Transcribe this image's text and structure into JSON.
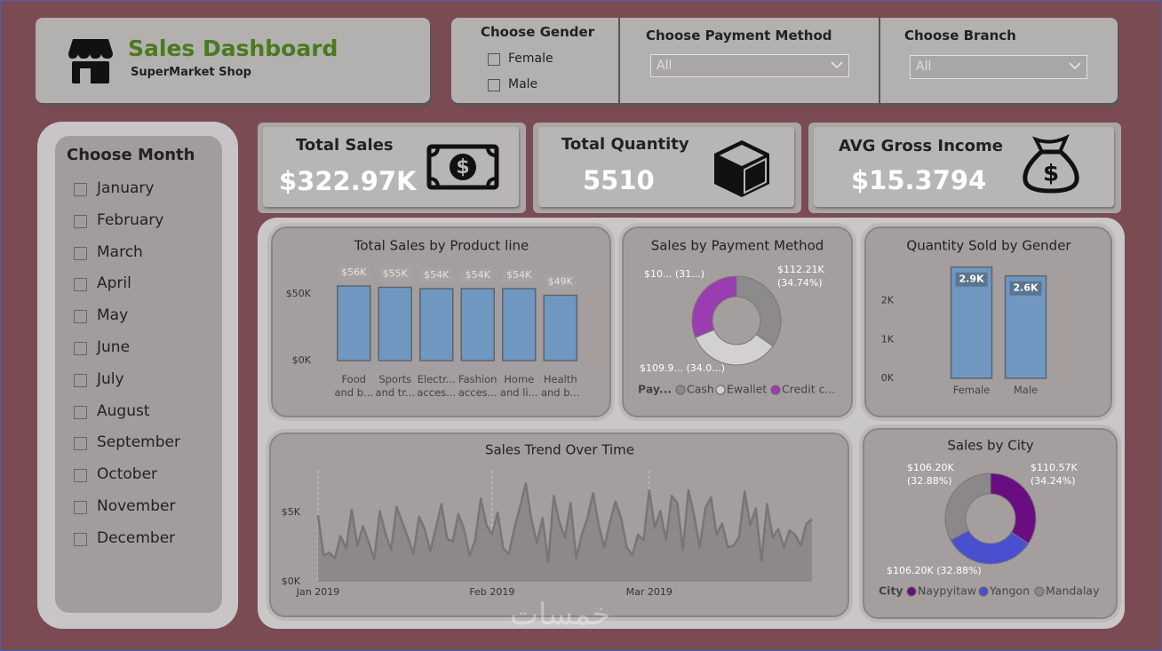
{
  "header": {
    "title": "Sales Dashboard",
    "subtitle": "SuperMarket Shop"
  },
  "filters": {
    "gender": {
      "title": "Choose Gender",
      "options": [
        "Female",
        "Male"
      ]
    },
    "payment": {
      "title": "Choose Payment Method",
      "selected": "All"
    },
    "branch": {
      "title": "Choose Branch",
      "selected": "All"
    },
    "month": {
      "title": "Choose Month",
      "options": [
        "January",
        "February",
        "March",
        "April",
        "May",
        "June",
        "July",
        "August",
        "September",
        "October",
        "November",
        "December"
      ]
    }
  },
  "kpis": [
    {
      "title": "Total Sales",
      "value": "$322.97K"
    },
    {
      "title": "Total Quantity",
      "value": "5510"
    },
    {
      "title": "AVG Gross Income",
      "value": "$15.3794"
    }
  ],
  "chart_data": [
    {
      "type": "bar",
      "title": "Total Sales by Product line",
      "categories": [
        "Food and b...",
        "Sports and tr...",
        "Electr... acces...",
        "Fashion acces...",
        "Home and li...",
        "Health and b..."
      ],
      "values": [
        56,
        55,
        54,
        54,
        54,
        49
      ],
      "value_labels": [
        "$56K",
        "$55K",
        "$54K",
        "$54K",
        "$54K",
        "$49K"
      ],
      "color": "#6f97c0",
      "ylim": [
        0,
        60
      ],
      "yticks": [
        {
          "value": 0,
          "label": "$0K"
        },
        {
          "value": 50,
          "label": "$50K"
        }
      ]
    },
    {
      "type": "donut",
      "title": "Sales by Payment Method",
      "legend_title": "Pay...",
      "categories": [
        "Cash",
        "Ewallet",
        "Credit c..."
      ],
      "values": [
        112.21,
        109.99,
        100.77
      ],
      "value_labels": [
        "$112.21K (34.74%)",
        "$109.9... (34.0...)",
        "$10... (31...)"
      ],
      "colors": [
        "#8c8a8a",
        "#d2d0d0",
        "#9b3db0"
      ]
    },
    {
      "type": "bar",
      "title": "Quantity Sold by Gender",
      "categories": [
        "Female",
        "Male"
      ],
      "values": [
        2.869,
        2.641
      ],
      "value_labels": [
        "2.9K",
        "2.6K"
      ],
      "color": "#6f97c0",
      "ylim": [
        0,
        3
      ],
      "yticks": [
        {
          "value": 0,
          "label": "0K"
        },
        {
          "value": 1,
          "label": "1K"
        },
        {
          "value": 2,
          "label": "2K"
        }
      ]
    },
    {
      "type": "area",
      "title": "Sales Trend Over Time",
      "x": [
        1,
        2,
        3,
        4,
        5,
        6,
        7,
        8,
        9,
        10,
        11,
        12,
        13,
        14,
        15,
        16,
        17,
        18,
        19,
        20,
        21,
        22,
        23,
        24,
        25,
        26,
        27,
        28,
        29,
        30,
        31,
        32,
        33,
        34,
        35,
        36,
        37,
        38,
        39,
        40,
        41,
        42,
        43,
        44,
        45,
        46,
        47,
        48,
        49,
        50,
        51,
        52,
        53,
        54,
        55,
        56,
        57,
        58,
        59,
        60,
        61,
        62,
        63,
        64,
        65,
        66,
        67,
        68,
        69,
        70,
        71,
        72,
        73,
        74,
        75,
        76,
        77,
        78,
        79,
        80,
        81,
        82,
        83,
        84,
        85,
        86,
        87,
        88,
        89
      ],
      "values": [
        4.8,
        1.9,
        2.1,
        1.7,
        3.3,
        2.4,
        5.2,
        2.6,
        4.0,
        2.9,
        1.6,
        5.1,
        3.5,
        2.3,
        5.4,
        4.3,
        3.2,
        2.0,
        4.7,
        3.8,
        2.2,
        3.9,
        5.6,
        3.1,
        2.9,
        4.9,
        3.8,
        1.9,
        3.0,
        6.0,
        4.1,
        3.4,
        5.0,
        2.4,
        2.0,
        3.9,
        5.4,
        7.1,
        4.5,
        2.8,
        4.6,
        1.4,
        6.2,
        4.3,
        3.2,
        5.7,
        1.7,
        3.4,
        4.6,
        6.4,
        4.1,
        2.5,
        4.3,
        5.8,
        4.6,
        2.5,
        1.9,
        3.4,
        3.0,
        6.6,
        3.9,
        5.1,
        3.0,
        6.2,
        5.7,
        2.3,
        6.6,
        4.8,
        2.5,
        5.3,
        6.1,
        3.4,
        4.2,
        2.5,
        2.6,
        3.2,
        6.5,
        4.1,
        5.3,
        1.5,
        5.6,
        3.2,
        3.8,
        2.5,
        3.7,
        3.4,
        2.6,
        4.2,
        4.5
      ],
      "color": "#7a7575",
      "xlim": [
        1,
        89
      ],
      "ylim": [
        0,
        7.5
      ],
      "xticks": [
        {
          "value": 1,
          "label": "Jan 2019"
        },
        {
          "value": 32,
          "label": "Feb 2019"
        },
        {
          "value": 60,
          "label": "Mar 2019"
        }
      ],
      "yticks": [
        {
          "value": 0,
          "label": "$0K"
        },
        {
          "value": 5,
          "label": "$5K"
        }
      ]
    },
    {
      "type": "donut",
      "title": "Sales by City",
      "legend_title": "City",
      "categories": [
        "Naypyitaw",
        "Yangon",
        "Mandalay"
      ],
      "values": [
        110.57,
        106.2,
        106.2
      ],
      "value_labels": [
        "$110.57K (34.24%)",
        "$106.20K (32.88%)",
        "$106.20K (32.88%)"
      ],
      "colors": [
        "#6a0d83",
        "#4a4fd0",
        "#8a8888"
      ]
    }
  ],
  "watermark": "خمسات"
}
